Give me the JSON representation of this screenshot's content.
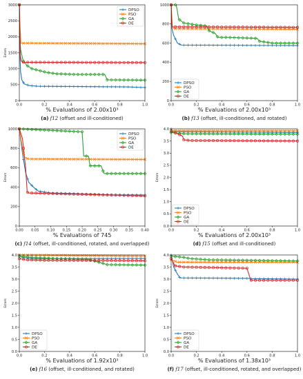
{
  "figure": {
    "colors": {
      "DPSO": "#1f77b4",
      "PSO": "#ff7f0e",
      "GA": "#2ca02c",
      "DE": "#d62728"
    },
    "legend_labels": [
      "DPSO",
      "PSO",
      "GA",
      "DE"
    ],
    "y_axis_label": "Errors"
  },
  "chart_data": [
    {
      "id": "a",
      "type": "line",
      "caption_letter": "(a)",
      "caption_func": "f12",
      "caption_desc": "(offset and ill-conditioned)",
      "xlabel": "% Evaluations of 2.00x10³",
      "ylabel": "Errors",
      "xlim": [
        0,
        1
      ],
      "ylim": [
        0,
        3000
      ],
      "xticks": [
        "0.0",
        "0.2",
        "0.4",
        "0.6",
        "0.8",
        "1.0"
      ],
      "yticks": [
        "0",
        "500",
        "1000",
        "1500",
        "2000",
        "2500",
        "3000"
      ],
      "legend": "top-right",
      "series": [
        {
          "name": "DPSO",
          "marker": "plus",
          "points": [
            [
              0,
              3000
            ],
            [
              0.005,
              1400
            ],
            [
              0.01,
              900
            ],
            [
              0.02,
              650
            ],
            [
              0.04,
              520
            ],
            [
              0.08,
              470
            ],
            [
              0.15,
              450
            ],
            [
              0.5,
              440
            ],
            [
              0.85,
              430
            ],
            [
              1.0,
              410
            ]
          ]
        },
        {
          "name": "PSO",
          "marker": "x",
          "points": [
            [
              0,
              3000
            ],
            [
              0.006,
              2300
            ],
            [
              0.012,
              1800
            ],
            [
              1.0,
              1780
            ]
          ]
        },
        {
          "name": "GA",
          "marker": "diamond",
          "points": [
            [
              0,
              3000
            ],
            [
              0.005,
              2000
            ],
            [
              0.01,
              1600
            ],
            [
              0.03,
              1250
            ],
            [
              0.06,
              1100
            ],
            [
              0.1,
              1000
            ],
            [
              0.15,
              950
            ],
            [
              0.22,
              880
            ],
            [
              0.3,
              840
            ],
            [
              0.45,
              820
            ],
            [
              0.68,
              820
            ],
            [
              0.7,
              650
            ],
            [
              1.0,
              640
            ]
          ]
        },
        {
          "name": "DE",
          "marker": "circle",
          "points": [
            [
              0,
              3000
            ],
            [
              0.004,
              2000
            ],
            [
              0.008,
              1400
            ],
            [
              0.015,
              1250
            ],
            [
              0.025,
              1200
            ],
            [
              1.0,
              1190
            ]
          ]
        }
      ]
    },
    {
      "id": "b",
      "type": "line",
      "caption_letter": "(b)",
      "caption_func": "f13",
      "caption_desc": "(offset, ill-conditioned, and rotated)",
      "xlabel": "% Evaluations of 2.00x10³",
      "ylabel": "",
      "xlim": [
        0,
        1
      ],
      "ylim": [
        0,
        1000
      ],
      "xticks": [
        "0.0",
        "0.2",
        "0.4",
        "0.6",
        "0.8",
        "1.0"
      ],
      "yticks": [
        "0",
        "200",
        "400",
        "600",
        "800",
        "1000"
      ],
      "legend": "bottom-left",
      "series": [
        {
          "name": "DPSO",
          "marker": "plus",
          "points": [
            [
              0,
              1000
            ],
            [
              0.005,
              760
            ],
            [
              0.02,
              680
            ],
            [
              0.05,
              600
            ],
            [
              0.08,
              580
            ],
            [
              1.0,
              575
            ]
          ]
        },
        {
          "name": "PSO",
          "marker": "x",
          "points": [
            [
              0,
              1000
            ],
            [
              0.01,
              760
            ],
            [
              0.03,
              750
            ],
            [
              1.0,
              745
            ]
          ]
        },
        {
          "name": "GA",
          "marker": "diamond",
          "points": [
            [
              0,
              1000
            ],
            [
              0.04,
              1000
            ],
            [
              0.06,
              850
            ],
            [
              0.1,
              810
            ],
            [
              0.2,
              790
            ],
            [
              0.28,
              780
            ],
            [
              0.3,
              730
            ],
            [
              0.35,
              700
            ],
            [
              0.37,
              660
            ],
            [
              0.45,
              660
            ],
            [
              0.68,
              650
            ],
            [
              0.7,
              620
            ],
            [
              0.75,
              610
            ],
            [
              0.8,
              600
            ],
            [
              1.0,
              600
            ]
          ]
        },
        {
          "name": "DE",
          "marker": "circle",
          "points": [
            [
              0,
              1000
            ],
            [
              0.005,
              800
            ],
            [
              0.01,
              770
            ],
            [
              1.0,
              765
            ]
          ]
        }
      ]
    },
    {
      "id": "c",
      "type": "line",
      "caption_letter": "(c)",
      "caption_func": "f14",
      "caption_desc": "(offset, ill-conditioned, rotated, and overlapped)",
      "xlabel": "% Evaluations of 745",
      "ylabel": "Errors",
      "xlim": [
        0,
        0.4
      ],
      "ylim": [
        0,
        1000
      ],
      "xticks": [
        "0.00",
        "0.05",
        "0.10",
        "0.15",
        "0.20",
        "0.25",
        "0.30",
        "0.35",
        "0.40"
      ],
      "yticks": [
        "0",
        "200",
        "400",
        "600",
        "800",
        "1000"
      ],
      "legend": "top-right",
      "series": [
        {
          "name": "DPSO",
          "marker": "plus",
          "points": [
            [
              0,
              1000
            ],
            [
              0.01,
              750
            ],
            [
              0.02,
              550
            ],
            [
              0.03,
              450
            ],
            [
              0.045,
              400
            ],
            [
              0.06,
              360
            ],
            [
              0.1,
              340
            ],
            [
              0.2,
              330
            ],
            [
              0.3,
              320
            ],
            [
              0.4,
              320
            ]
          ]
        },
        {
          "name": "PSO",
          "marker": "x",
          "points": [
            [
              0,
              1000
            ],
            [
              0.005,
              900
            ],
            [
              0.01,
              800
            ],
            [
              0.015,
              720
            ],
            [
              0.02,
              700
            ],
            [
              0.03,
              690
            ],
            [
              0.4,
              685
            ]
          ]
        },
        {
          "name": "GA",
          "marker": "diamond",
          "points": [
            [
              0,
              1000
            ],
            [
              0.13,
              980
            ],
            [
              0.2,
              970
            ],
            [
              0.205,
              720
            ],
            [
              0.22,
              720
            ],
            [
              0.225,
              620
            ],
            [
              0.26,
              620
            ],
            [
              0.27,
              540
            ],
            [
              0.4,
              540
            ]
          ]
        },
        {
          "name": "DE",
          "marker": "circle",
          "points": [
            [
              0,
              1000
            ],
            [
              0.01,
              900
            ],
            [
              0.02,
              600
            ],
            [
              0.025,
              350
            ],
            [
              0.03,
              340
            ],
            [
              0.4,
              310
            ]
          ]
        }
      ]
    },
    {
      "id": "d",
      "type": "line",
      "caption_letter": "(d)",
      "caption_func": "f15",
      "caption_desc": "(offset and ill-conditioned)",
      "xlabel": "% Evaluations of 2.00x10³",
      "ylabel": "Errors",
      "xlim": [
        0,
        1
      ],
      "ylim": [
        0,
        4.0
      ],
      "xticks": [
        "0.0",
        "0.2",
        "0.4",
        "0.6",
        "0.8",
        "1.0"
      ],
      "yticks": [
        "0.0",
        "0.5",
        "1.0",
        "1.5",
        "2.0",
        "2.5",
        "3.0",
        "3.5",
        "4.0"
      ],
      "legend": "bottom-left",
      "series": [
        {
          "name": "DPSO",
          "marker": "plus",
          "points": [
            [
              0,
              4.0
            ],
            [
              0.01,
              3.92
            ],
            [
              0.05,
              3.88
            ],
            [
              1.0,
              3.85
            ]
          ]
        },
        {
          "name": "PSO",
          "marker": "x",
          "points": [
            [
              0,
              3.95
            ],
            [
              0.02,
              3.92
            ],
            [
              1.0,
              3.92
            ]
          ]
        },
        {
          "name": "GA",
          "marker": "diamond",
          "points": [
            [
              0,
              3.85
            ],
            [
              0.05,
              3.82
            ],
            [
              0.1,
              3.8
            ],
            [
              1.0,
              3.78
            ]
          ]
        },
        {
          "name": "DE",
          "marker": "circle",
          "points": [
            [
              0,
              3.9
            ],
            [
              0.05,
              3.8
            ],
            [
              0.09,
              3.7
            ],
            [
              0.1,
              3.55
            ],
            [
              0.15,
              3.52
            ],
            [
              1.0,
              3.5
            ]
          ]
        }
      ]
    },
    {
      "id": "e",
      "type": "line",
      "caption_letter": "(e)",
      "caption_func": "f16",
      "caption_desc": "(offset, ill-conditioned, and rotated)",
      "xlabel": "% Evaluations of 1.92x10³",
      "ylabel": "Errors",
      "xlim": [
        0,
        1
      ],
      "ylim": [
        0,
        4.0
      ],
      "xticks": [
        "0.0",
        "0.2",
        "0.4",
        "0.6",
        "0.8",
        "1.0"
      ],
      "yticks": [
        "0.0",
        "0.5",
        "1.0",
        "1.5",
        "2.0",
        "2.5",
        "3.0",
        "3.5",
        "4.0"
      ],
      "legend": "bottom-left",
      "series": [
        {
          "name": "DPSO",
          "marker": "plus",
          "points": [
            [
              0,
              4.0
            ],
            [
              0.02,
              3.9
            ],
            [
              0.1,
              3.85
            ],
            [
              1.0,
              3.85
            ]
          ]
        },
        {
          "name": "PSO",
          "marker": "x",
          "points": [
            [
              0,
              4.0
            ],
            [
              1.0,
              3.95
            ]
          ]
        },
        {
          "name": "GA",
          "marker": "diamond",
          "points": [
            [
              0,
              3.95
            ],
            [
              0.1,
              3.9
            ],
            [
              0.3,
              3.85
            ],
            [
              0.55,
              3.82
            ],
            [
              0.7,
              3.6
            ],
            [
              1.0,
              3.58
            ]
          ]
        },
        {
          "name": "DE",
          "marker": "circle",
          "points": [
            [
              0,
              3.85
            ],
            [
              0.05,
              3.8
            ],
            [
              0.2,
              3.78
            ],
            [
              1.0,
              3.76
            ]
          ]
        }
      ]
    },
    {
      "id": "f",
      "type": "line",
      "caption_letter": "(f)",
      "caption_func": "f17",
      "caption_desc": "(offset, ill-conditioned, rotated, and overlapped)",
      "xlabel": "% Evaluations of 1.38x10³",
      "ylabel": "Errors",
      "xlim": [
        0,
        1
      ],
      "ylim": [
        0,
        4.0
      ],
      "xticks": [
        "0.0",
        "0.2",
        "0.4",
        "0.6",
        "0.8",
        "1.0"
      ],
      "yticks": [
        "0.0",
        "0.5",
        "1.0",
        "1.5",
        "2.0",
        "2.5",
        "3.0",
        "3.5",
        "4.0"
      ],
      "legend": "bottom-left",
      "series": [
        {
          "name": "DPSO",
          "marker": "plus",
          "points": [
            [
              0,
              4.0
            ],
            [
              0.02,
              3.5
            ],
            [
              0.05,
              3.2
            ],
            [
              0.07,
              3.05
            ],
            [
              0.6,
              3.03
            ],
            [
              0.63,
              3.02
            ],
            [
              1.0,
              3.0
            ]
          ]
        },
        {
          "name": "PSO",
          "marker": "x",
          "points": [
            [
              0,
              3.8
            ],
            [
              0.05,
              3.7
            ],
            [
              1.0,
              3.7
            ]
          ]
        },
        {
          "name": "GA",
          "marker": "diamond",
          "points": [
            [
              0,
              3.95
            ],
            [
              0.1,
              3.9
            ],
            [
              0.15,
              3.85
            ],
            [
              0.3,
              3.8
            ],
            [
              1.0,
              3.75
            ]
          ]
        },
        {
          "name": "DE",
          "marker": "circle",
          "points": [
            [
              0,
              3.85
            ],
            [
              0.03,
              3.55
            ],
            [
              0.1,
              3.5
            ],
            [
              0.6,
              3.45
            ],
            [
              0.63,
              2.95
            ],
            [
              1.0,
              2.95
            ]
          ]
        }
      ]
    }
  ]
}
